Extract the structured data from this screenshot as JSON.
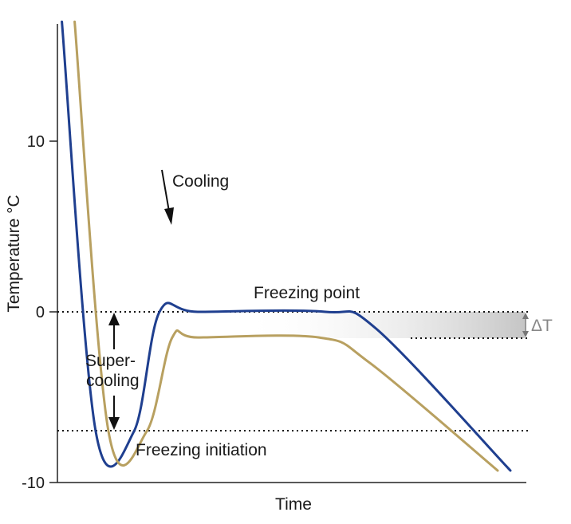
{
  "chart_data": {
    "type": "line",
    "title": "",
    "xlabel": "Time",
    "ylabel": "Temperature °C",
    "ylim": [
      -10,
      17
    ],
    "yticks": [
      {
        "value": 10,
        "label": "10"
      },
      {
        "value": 0,
        "label": "0"
      },
      {
        "value": -10,
        "label": "-10"
      }
    ],
    "grid": false,
    "reference_lines": [
      {
        "name": "freezing-point",
        "y": 0
      },
      {
        "name": "freezing-initiation",
        "y": -7
      }
    ],
    "series": [
      {
        "color": "#1f3f8f",
        "points": [
          [
            0.07,
            17
          ],
          [
            0.6,
            -7
          ],
          [
            1.2,
            -7
          ],
          [
            1.6,
            0
          ],
          [
            2.2,
            0
          ],
          [
            4.2,
            0
          ],
          [
            5.0,
            -1
          ],
          [
            7.1,
            -9.3
          ]
        ]
      },
      {
        "color": "#b8a060",
        "points": [
          [
            0.27,
            17
          ],
          [
            0.8,
            -7
          ],
          [
            1.4,
            -7
          ],
          [
            1.8,
            -1.5
          ],
          [
            2.2,
            -1.5
          ],
          [
            4.1,
            -1.5
          ],
          [
            4.9,
            -3
          ],
          [
            6.9,
            -9.3
          ]
        ]
      }
    ],
    "annotations": {
      "cooling": "Cooling",
      "freezing_point": "Freezing point",
      "supercooling_line1": "Super-",
      "supercooling_line2": "cooling",
      "freezing_initiation": "Freezing initiation",
      "delta_t": "ΔT"
    }
  }
}
